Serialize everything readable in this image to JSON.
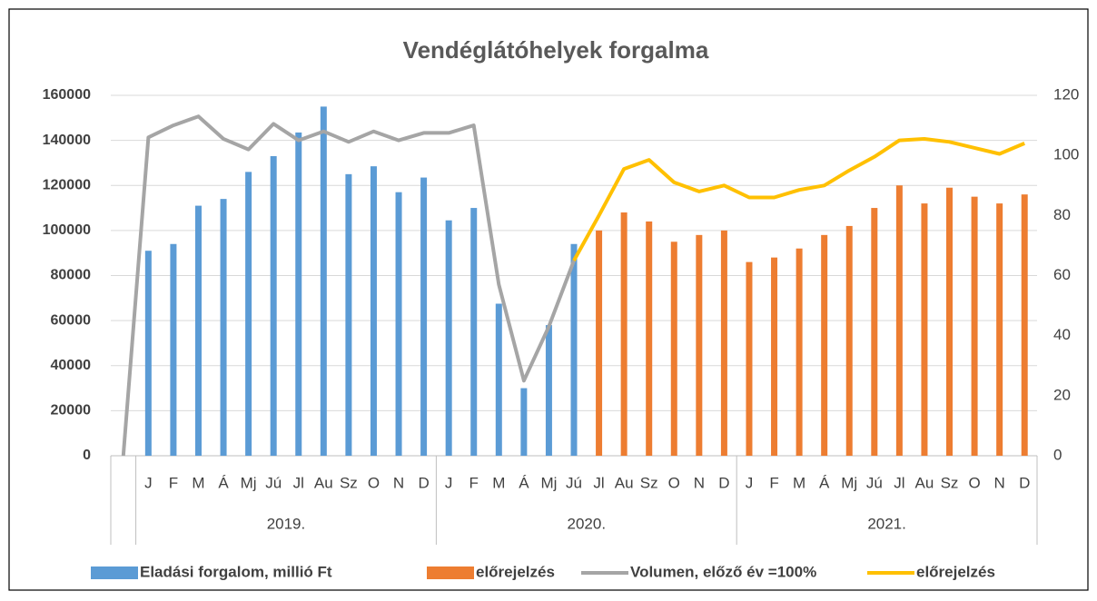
{
  "chart_data": {
    "type": "bar-line",
    "title": "Vendéglátóhelyek forgalma",
    "categories": [
      null,
      "J",
      "F",
      "M",
      "Á",
      "Mj",
      "Jú",
      "Jl",
      "Au",
      "Sz",
      "O",
      "N",
      "D",
      "J",
      "F",
      "M",
      "Á",
      "Mj",
      "Jú",
      "Jl",
      "Au",
      "Sz",
      "O",
      "N",
      "D",
      "J",
      "F",
      "M",
      "Á",
      "Mj",
      "Jú",
      "Jl",
      "Au",
      "Sz",
      "O",
      "N",
      "D"
    ],
    "groups": [
      "2019.",
      "2020.",
      "2021."
    ],
    "series": [
      {
        "name": "Eladási forgalom, millió Ft",
        "kind": "bar",
        "color": "#5b9bd5",
        "values": [
          null,
          91000,
          94000,
          111000,
          114000,
          126000,
          133000,
          143500,
          155000,
          125000,
          128500,
          117000,
          123500,
          104500,
          110000,
          67500,
          30000,
          58000,
          94000,
          null,
          null,
          null,
          null,
          null,
          null,
          null,
          null,
          null,
          null,
          null,
          null,
          null,
          null,
          null,
          null,
          null,
          null
        ]
      },
      {
        "name": "előrejelzés",
        "kind": "bar",
        "color": "#ed7d31",
        "values": [
          null,
          null,
          null,
          null,
          null,
          null,
          null,
          null,
          null,
          null,
          null,
          null,
          null,
          null,
          null,
          null,
          null,
          null,
          null,
          100000,
          108000,
          104000,
          95000,
          98000,
          100000,
          86000,
          88000,
          92000,
          98000,
          102000,
          110000,
          120000,
          112000,
          119000,
          115000,
          112000,
          116000
        ]
      },
      {
        "name": "Volumen, előző év =100%",
        "kind": "line",
        "axis": "y2",
        "color": "#a5a5a5",
        "values": [
          0,
          106,
          110,
          113,
          105.5,
          102,
          110.5,
          105,
          108,
          104.5,
          108,
          105,
          107.5,
          107.5,
          110,
          57,
          25,
          43,
          65,
          null,
          null,
          null,
          null,
          null,
          null,
          null,
          null,
          null,
          null,
          null,
          null,
          null,
          null,
          null,
          null,
          null,
          null
        ]
      },
      {
        "name": "előrejelzés",
        "kind": "line",
        "axis": "y2",
        "color": "#ffc000",
        "values": [
          null,
          null,
          null,
          null,
          null,
          null,
          null,
          null,
          null,
          null,
          null,
          null,
          null,
          null,
          null,
          null,
          null,
          null,
          65,
          80,
          95.5,
          98.5,
          91,
          88,
          90,
          86,
          86,
          88.5,
          90,
          95,
          99.5,
          105,
          105.5,
          104.5,
          102.5,
          100.5,
          104
        ]
      }
    ],
    "ylim": [
      0,
      160000
    ],
    "yticks": [
      0,
      20000,
      40000,
      60000,
      80000,
      100000,
      120000,
      140000,
      160000
    ],
    "y2lim": [
      0,
      120
    ],
    "y2ticks": [
      0,
      20,
      40,
      60,
      80,
      100,
      120
    ],
    "grid": true,
    "legend": "bottom"
  }
}
